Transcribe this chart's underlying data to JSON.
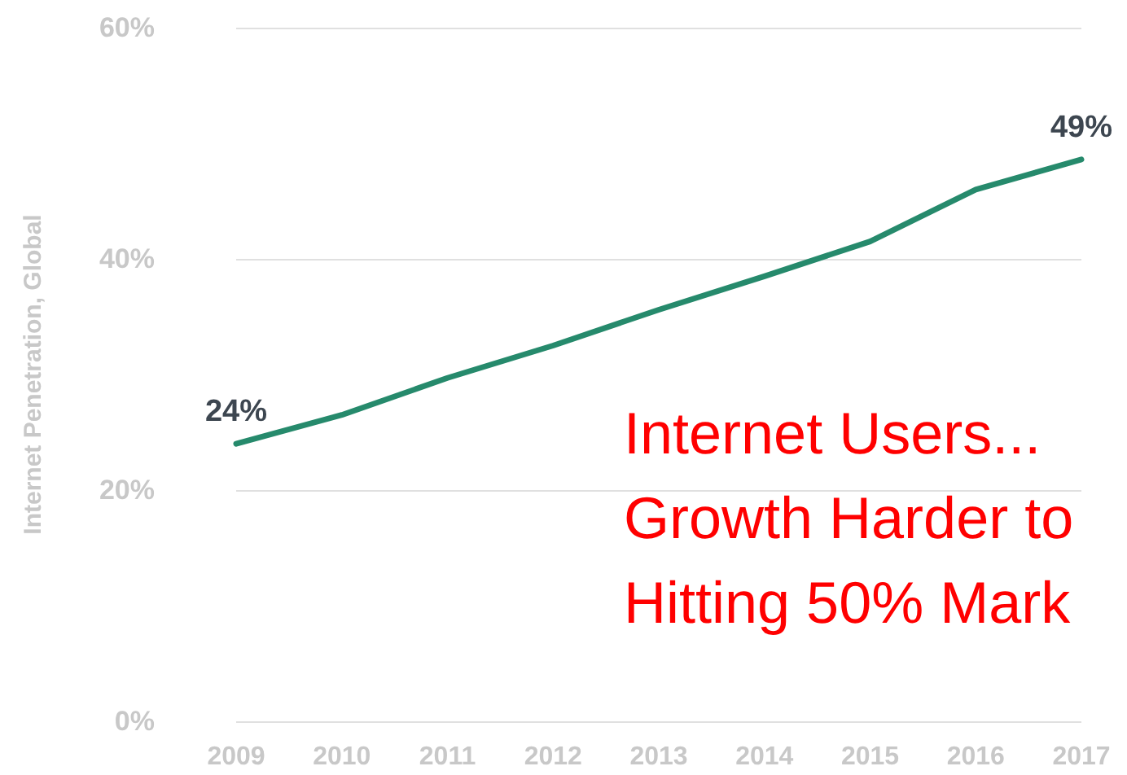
{
  "chart_data": {
    "type": "line",
    "ylabel": "Internet Penetration, Global",
    "categories": [
      "2009",
      "2010",
      "2011",
      "2012",
      "2013",
      "2014",
      "2015",
      "2016",
      "2017"
    ],
    "series": [
      {
        "color": "#268a6c",
        "values": [
          24,
          26.5,
          29.7,
          32.5,
          35.6,
          38.5,
          41.5,
          46,
          48.6
        ],
        "value_labels": [
          "24%",
          null,
          null,
          null,
          null,
          null,
          null,
          null,
          "49%"
        ]
      }
    ],
    "ylim": [
      0,
      60
    ],
    "yticks": [
      {
        "value": 0,
        "label": "0%"
      },
      {
        "value": 20,
        "label": "20%"
      },
      {
        "value": 40,
        "label": "40%"
      },
      {
        "value": 60,
        "label": "60%"
      }
    ],
    "grid": "y",
    "marker": "none",
    "line_style": "solid",
    "annotations": [
      "Internet Users... Growth Harder to Hitting 50% Mark"
    ]
  }
}
